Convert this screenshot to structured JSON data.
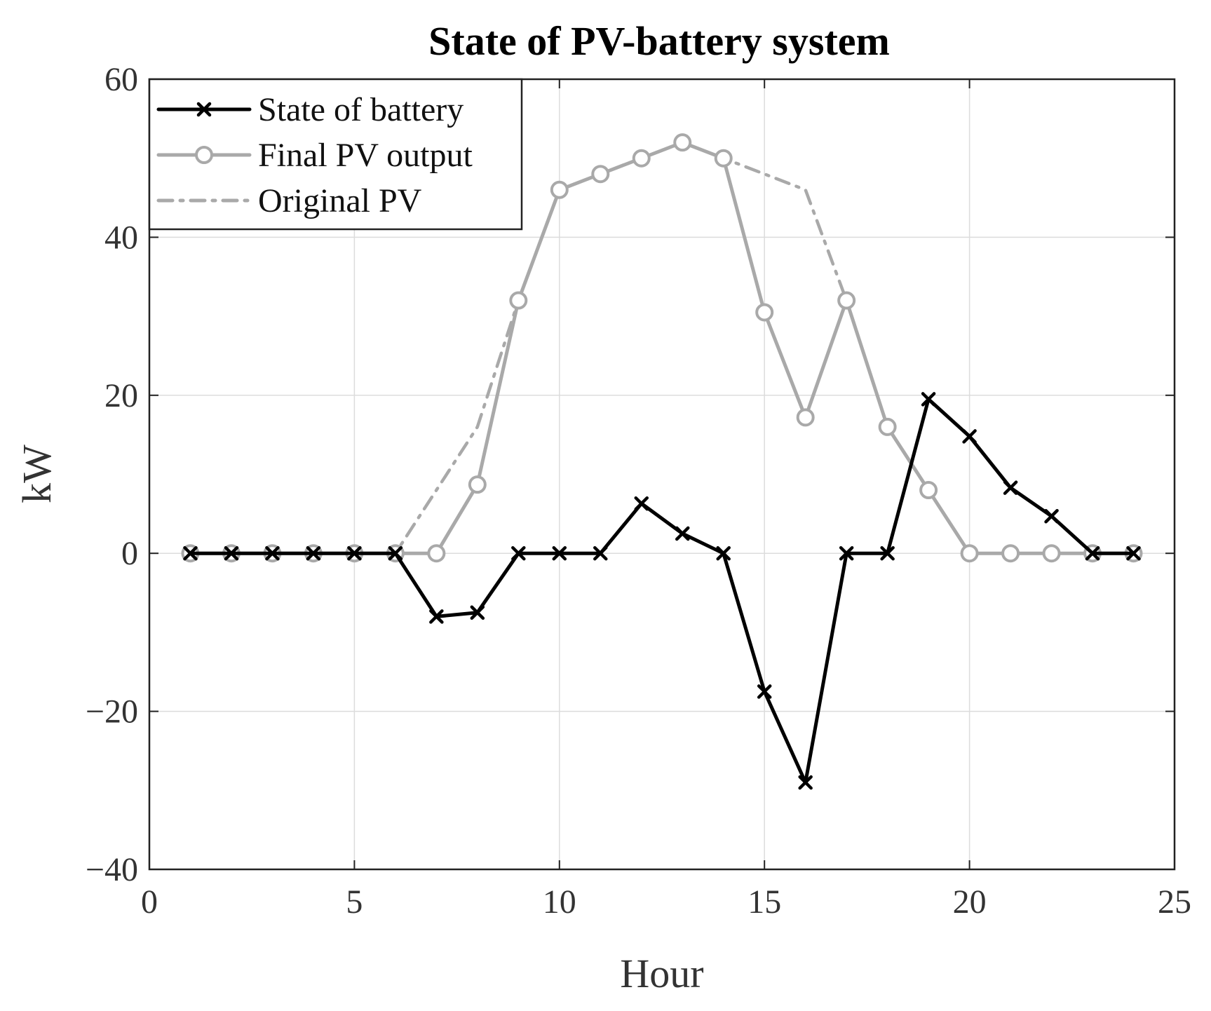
{
  "chart_data": {
    "type": "line",
    "title": "State of PV-battery system",
    "xlabel": "Hour",
    "ylabel": "kW",
    "xlim": [
      0,
      25
    ],
    "ylim": [
      -40,
      60
    ],
    "xticks": [
      0,
      5,
      10,
      15,
      20,
      25
    ],
    "yticks": [
      -40,
      -20,
      0,
      20,
      40,
      60
    ],
    "xtick_labels": [
      "0",
      "5",
      "10",
      "15",
      "20",
      "25"
    ],
    "ytick_labels": [
      "−40",
      "−20",
      "0",
      "20",
      "40",
      "60"
    ],
    "grid": true,
    "legend_position": "top-left",
    "x": [
      1,
      2,
      3,
      4,
      5,
      6,
      7,
      8,
      9,
      10,
      11,
      12,
      13,
      14,
      15,
      16,
      17,
      18,
      19,
      20,
      21,
      22,
      23,
      24
    ],
    "series": [
      {
        "name": "State of battery",
        "color": "#000000",
        "style": "solid",
        "marker": "x",
        "values": [
          0,
          0,
          0,
          0,
          0,
          0,
          -8,
          -7.5,
          0,
          0,
          0,
          6.3,
          2.5,
          0,
          -17.5,
          -29,
          0,
          0,
          19.5,
          14.8,
          8.3,
          4.7,
          0,
          0
        ]
      },
      {
        "name": "Final PV output",
        "color": "#a9a9a9",
        "style": "solid",
        "marker": "o",
        "values": [
          0,
          0,
          0,
          0,
          0,
          0,
          0,
          8.7,
          32,
          46,
          48,
          50,
          52,
          50,
          30.5,
          17.2,
          32,
          16,
          8,
          0,
          0,
          0,
          0,
          0
        ]
      },
      {
        "name": "Original PV",
        "color": "#a9a9a9",
        "style": "dashdot",
        "marker": "none",
        "values": [
          0,
          0,
          0,
          0,
          0,
          0,
          8,
          16,
          32,
          46,
          48,
          50,
          52,
          50,
          48,
          46,
          32,
          16,
          8,
          0,
          0,
          0,
          0,
          0
        ]
      }
    ]
  }
}
